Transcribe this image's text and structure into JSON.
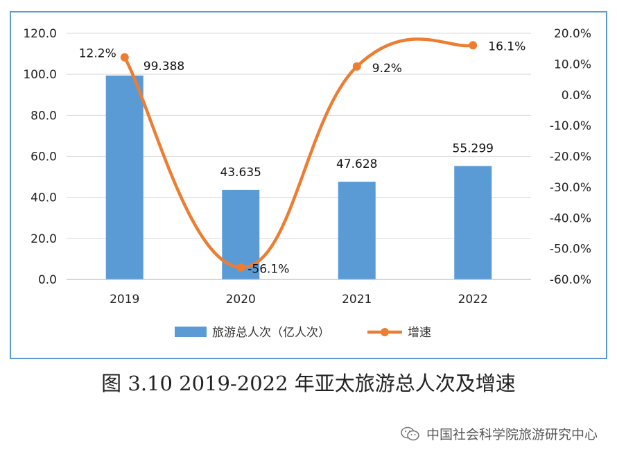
{
  "chart_data": {
    "type": "bar+line",
    "categories": [
      "2019",
      "2020",
      "2021",
      "2022"
    ],
    "series": [
      {
        "name": "旅游总人次（亿人次）",
        "type": "bar",
        "axis": "left",
        "values": [
          99.388,
          43.635,
          47.628,
          55.299
        ],
        "labels": [
          "99.388",
          "43.635",
          "47.628",
          "55.299"
        ],
        "color": "#5b9bd5"
      },
      {
        "name": "增速",
        "type": "line",
        "axis": "right",
        "values": [
          12.2,
          -56.1,
          9.2,
          16.1
        ],
        "labels": [
          "12.2%",
          "-56.1%",
          "9.2%",
          "16.1%"
        ],
        "color": "#ed7d31"
      }
    ],
    "y_left": {
      "min": 0,
      "max": 120,
      "step": 20,
      "ticks": [
        "0.0",
        "20.0",
        "40.0",
        "60.0",
        "80.0",
        "100.0",
        "120.0"
      ]
    },
    "y_right": {
      "min": -60,
      "max": 20,
      "step": 10,
      "ticks": [
        "-60.0%",
        "-50.0%",
        "-40.0%",
        "-30.0%",
        "-20.0%",
        "-10.0%",
        "0.0%",
        "10.0%",
        "20.0%"
      ]
    },
    "grid": true,
    "legend_position": "bottom"
  },
  "caption": "图 3.10 2019-2022 年亚太旅游总人次及增速",
  "watermark": "中国社会科学院旅游研究中心"
}
